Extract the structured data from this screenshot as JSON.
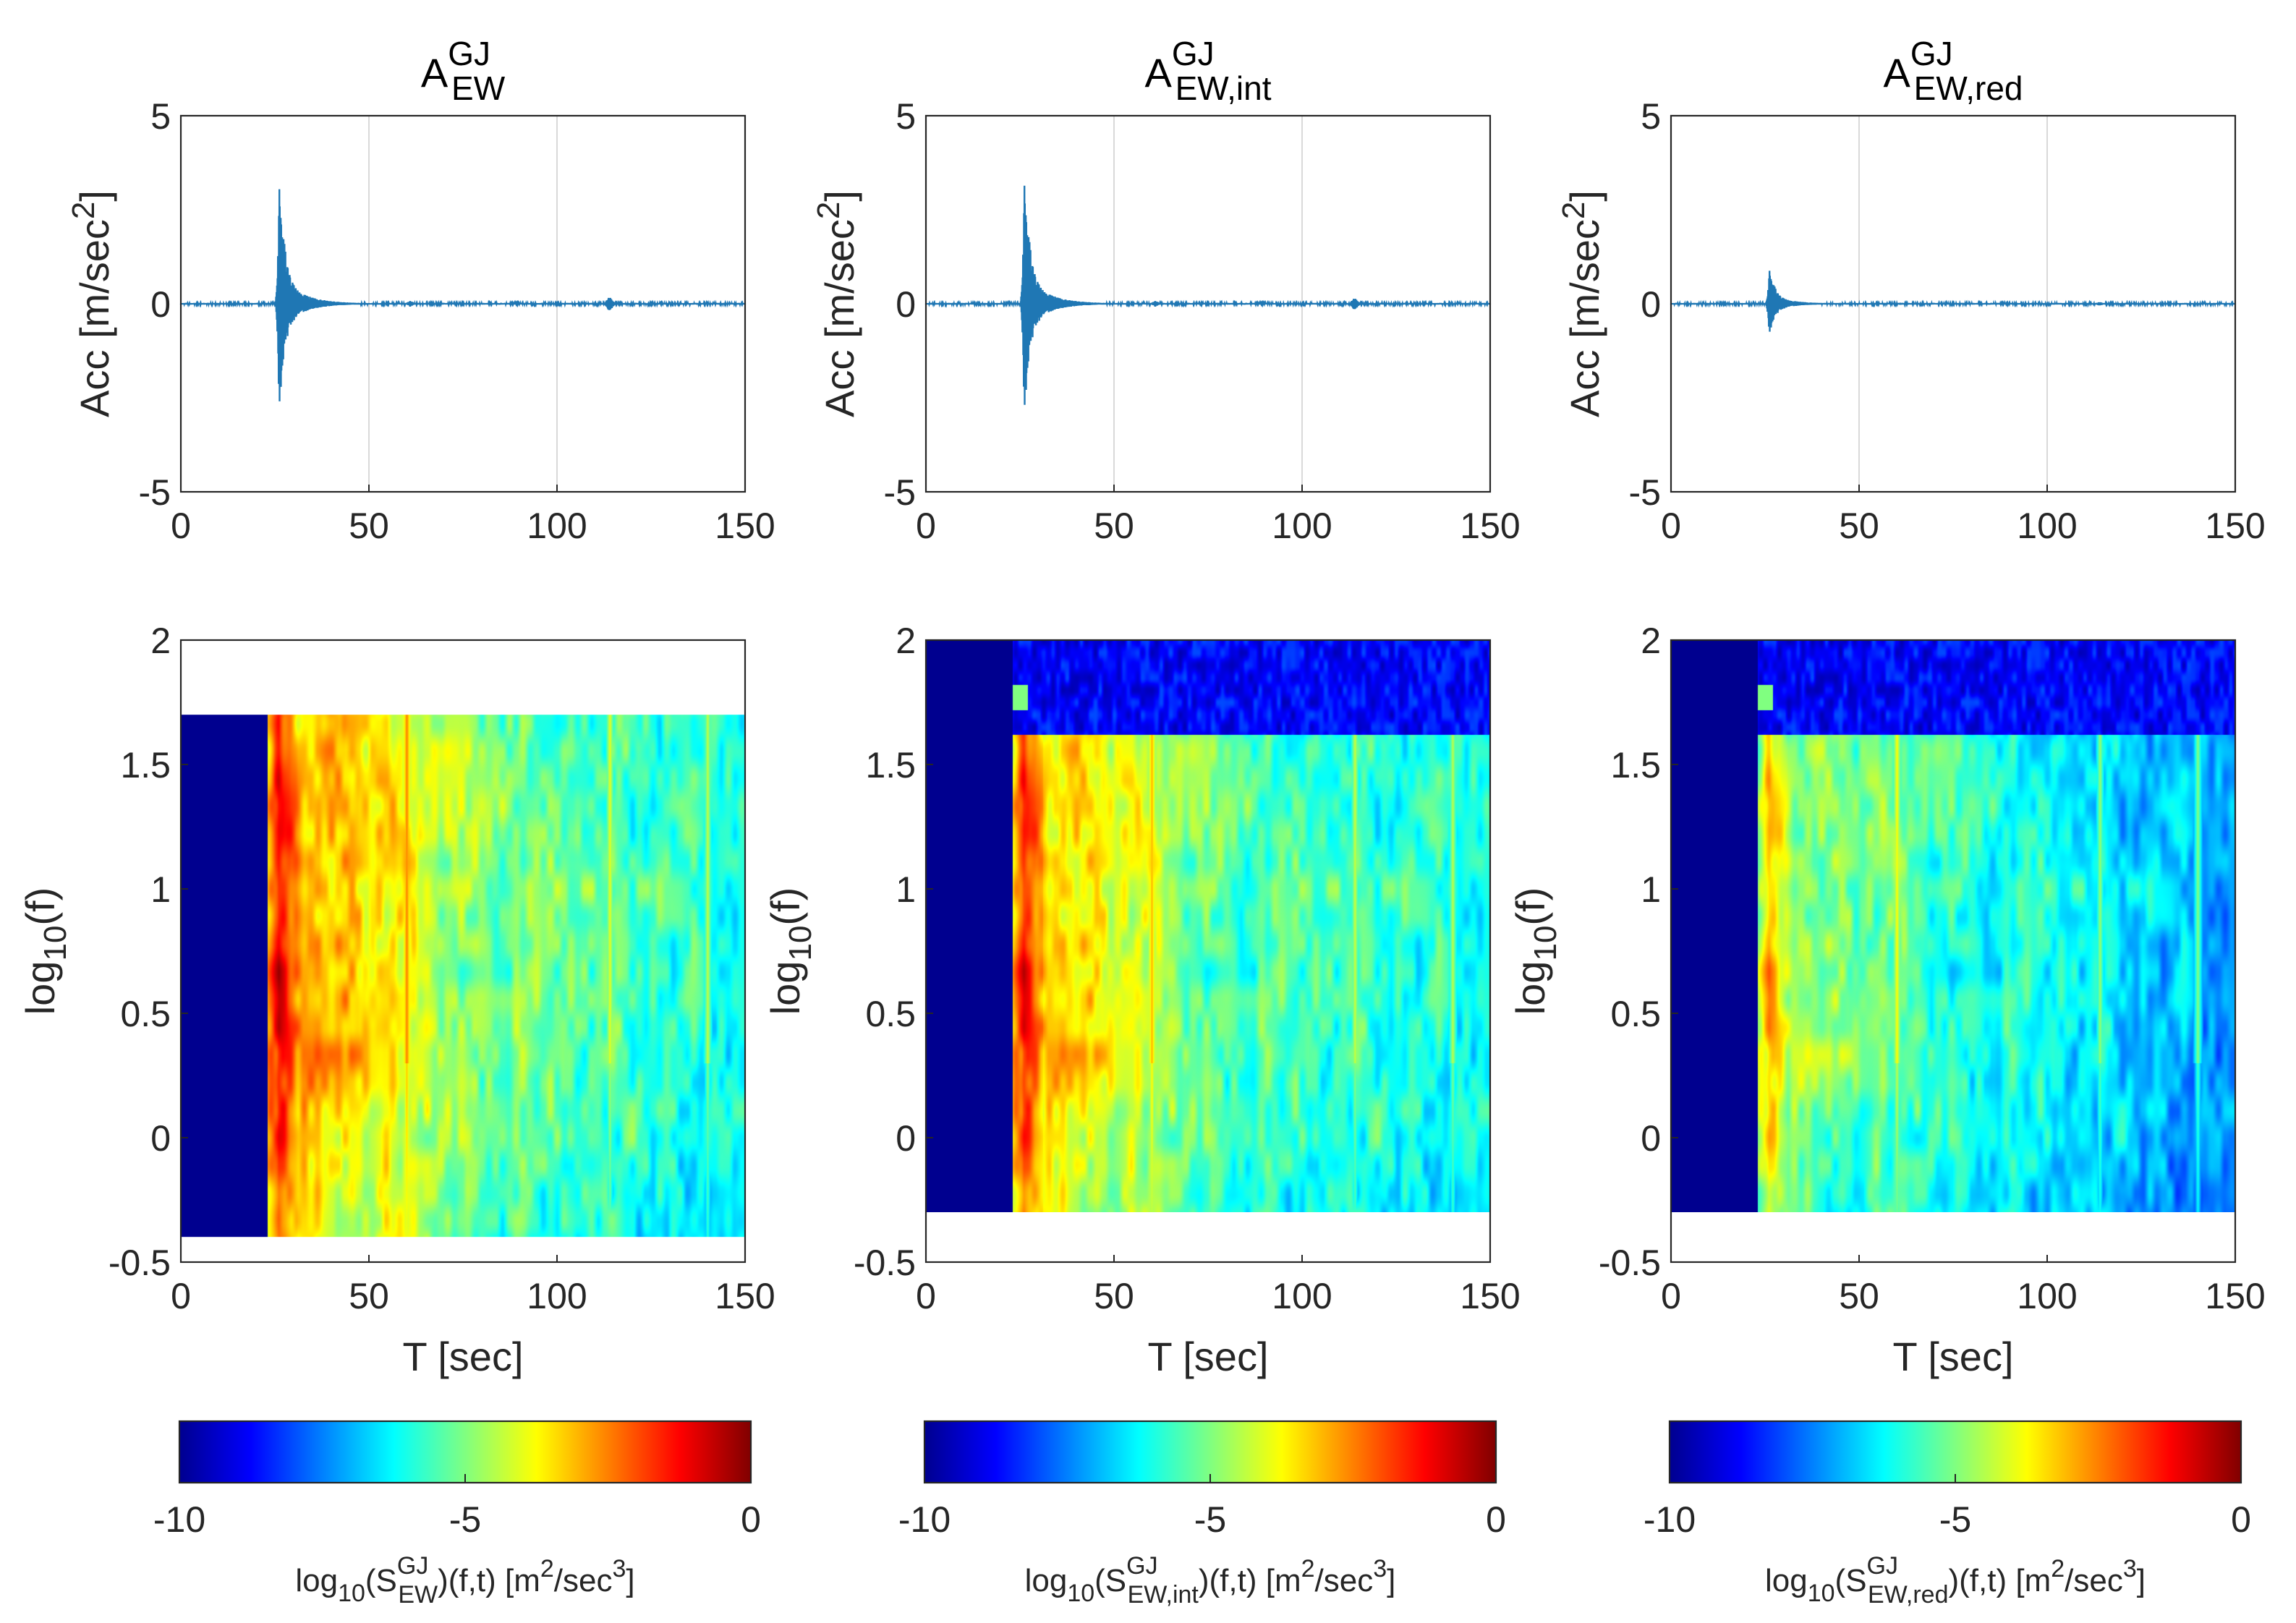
{
  "figure": {
    "colormap": [
      "#00008f",
      "#0000ff",
      "#0080ff",
      "#00ffff",
      "#80ff80",
      "#ffff00",
      "#ff8000",
      "#ff0000",
      "#800000"
    ],
    "signal_color": "#1f77b4",
    "grid_color": "#d9d9d9",
    "panels": [
      {
        "id": "A",
        "title": {
          "base": "A",
          "sup": "GJ",
          "sub": "EW"
        },
        "cb_label": {
          "prefix": "log",
          "prefix_sub": "10",
          "open": "(S",
          "sup": "GJ",
          "sub": "EW",
          "close": ")(f,t) [m",
          "units_sup1": "2",
          "units_mid": "/sec",
          "units_sup2": "3",
          "units_end": "]"
        }
      },
      {
        "id": "B",
        "title": {
          "base": "A",
          "sup": "GJ",
          "sub": "EW,int"
        },
        "cb_label": {
          "prefix": "log",
          "prefix_sub": "10",
          "open": "(S",
          "sup": "GJ",
          "sub": "EW,int",
          "close": ")(f,t) [m",
          "units_sup1": "2",
          "units_mid": "/sec",
          "units_sup2": "3",
          "units_end": "]"
        }
      },
      {
        "id": "C",
        "title": {
          "base": "A",
          "sup": "GJ",
          "sub": "EW,red"
        },
        "cb_label": {
          "prefix": "log",
          "prefix_sub": "10",
          "open": "(S",
          "sup": "GJ",
          "sub": "EW,red",
          "close": ")(f,t) [m",
          "units_sup1": "2",
          "units_mid": "/sec",
          "units_sup2": "3",
          "units_end": "]"
        }
      }
    ],
    "labels": {
      "acc_ylabel": {
        "text": "Acc [m/sec",
        "sup": "2",
        "end": "]"
      },
      "spec_ylabel": {
        "base": "log",
        "sub": "10",
        "end": "(f)"
      },
      "spec_xlabel": "T [sec]"
    },
    "ticks": {
      "acc_x": [
        "0",
        "50",
        "100",
        "150"
      ],
      "acc_y": [
        "5",
        "0",
        "-5"
      ],
      "spec_x": [
        "0",
        "50",
        "100",
        "150"
      ],
      "spec_y": [
        "2",
        "1.5",
        "1",
        "0.5",
        "0",
        "-0.5"
      ],
      "cb": [
        "-10",
        "-5",
        "0"
      ]
    }
  },
  "chart_data": [
    {
      "type": "line",
      "title": "A^GJ_EW",
      "xlabel": "",
      "ylabel": "Acc [m/sec^2]",
      "xlim": [
        0,
        150
      ],
      "ylim": [
        -5,
        5
      ],
      "grid": true,
      "x_ticks": [
        0,
        50,
        100,
        150
      ],
      "y_ticks": [
        -5,
        0,
        5
      ],
      "signal": {
        "onset_t": 25,
        "peak_t": 26,
        "max": 3.3,
        "min": -2.8,
        "events": [
          {
            "t": 61,
            "amp": 0.08
          },
          {
            "t": 114,
            "amp": 0.2
          }
        ]
      }
    },
    {
      "type": "line",
      "title": "A^GJ_EW,int",
      "xlabel": "",
      "ylabel": "Acc [m/sec^2]",
      "xlim": [
        0,
        150
      ],
      "ylim": [
        -5,
        5
      ],
      "grid": true,
      "x_ticks": [
        0,
        50,
        100,
        150
      ],
      "y_ticks": [
        -5,
        0,
        5
      ],
      "signal": {
        "onset_t": 25,
        "peak_t": 26,
        "max": 3.4,
        "min": -2.9,
        "events": [
          {
            "t": 61,
            "amp": 0.08
          },
          {
            "t": 114,
            "amp": 0.17
          }
        ]
      }
    },
    {
      "type": "line",
      "title": "A^GJ_EW,red",
      "xlabel": "",
      "ylabel": "Acc [m/sec^2]",
      "xlim": [
        0,
        150
      ],
      "ylim": [
        -5,
        5
      ],
      "grid": true,
      "x_ticks": [
        0,
        50,
        100,
        150
      ],
      "y_ticks": [
        -5,
        0,
        5
      ],
      "signal": {
        "onset_t": 25,
        "peak_t": 26,
        "max": 0.95,
        "min": -0.8,
        "events": [
          {
            "t": 61,
            "amp": 0.03
          },
          {
            "t": 114,
            "amp": 0.05
          }
        ]
      }
    },
    {
      "type": "heatmap",
      "title": "log10(S^GJ_EW)(f,t)",
      "xlabel": "T [sec]",
      "ylabel": "log10(f)",
      "xlim": [
        0,
        150
      ],
      "ylim": [
        -0.5,
        2
      ],
      "clim": [
        -10,
        0
      ],
      "x_ticks": [
        0,
        50,
        100,
        150
      ],
      "y_ticks": [
        -0.5,
        0,
        0.5,
        1,
        1.5,
        2
      ],
      "data_extent": {
        "f_min": -0.4,
        "f_max": 1.7
      },
      "background_value": -10,
      "onset_t": 23,
      "peak_level": -1.2,
      "decay_levels": [
        {
          "t": 40,
          "level": -4.5
        },
        {
          "t": 80,
          "level": -6.5
        },
        {
          "t": 150,
          "level": -7.5
        }
      ],
      "bright_streaks_t": [
        60,
        114,
        140
      ],
      "upper_band": false
    },
    {
      "type": "heatmap",
      "title": "log10(S^GJ_EW,int)(f,t)",
      "xlabel": "T [sec]",
      "ylabel": "log10(f)",
      "xlim": [
        0,
        150
      ],
      "ylim": [
        -0.5,
        2
      ],
      "clim": [
        -10,
        0
      ],
      "x_ticks": [
        0,
        50,
        100,
        150
      ],
      "y_ticks": [
        -0.5,
        0,
        0.5,
        1,
        1.5,
        2
      ],
      "data_extent": {
        "f_min": -0.3,
        "f_max": 2.0
      },
      "background_value": -10,
      "onset_t": 23,
      "peak_level": -1.5,
      "decay_levels": [
        {
          "t": 40,
          "level": -5
        },
        {
          "t": 80,
          "level": -7
        },
        {
          "t": 150,
          "level": -7.5
        }
      ],
      "bright_streaks_t": [
        60,
        114,
        140
      ],
      "upper_band": true
    },
    {
      "type": "heatmap",
      "title": "log10(S^GJ_EW,red)(f,t)",
      "xlabel": "T [sec]",
      "ylabel": "log10(f)",
      "xlim": [
        0,
        150
      ],
      "ylim": [
        -0.5,
        2
      ],
      "clim": [
        -10,
        0
      ],
      "x_ticks": [
        0,
        50,
        100,
        150
      ],
      "y_ticks": [
        -0.5,
        0,
        0.5,
        1,
        1.5,
        2
      ],
      "data_extent": {
        "f_min": -0.3,
        "f_max": 2.0
      },
      "background_value": -10,
      "onset_t": 23,
      "peak_level": -3,
      "decay_levels": [
        {
          "t": 40,
          "level": -6
        },
        {
          "t": 80,
          "level": -7.5
        },
        {
          "t": 150,
          "level": -8
        }
      ],
      "bright_streaks_t": [
        60,
        114,
        140
      ],
      "upper_band": true
    }
  ]
}
